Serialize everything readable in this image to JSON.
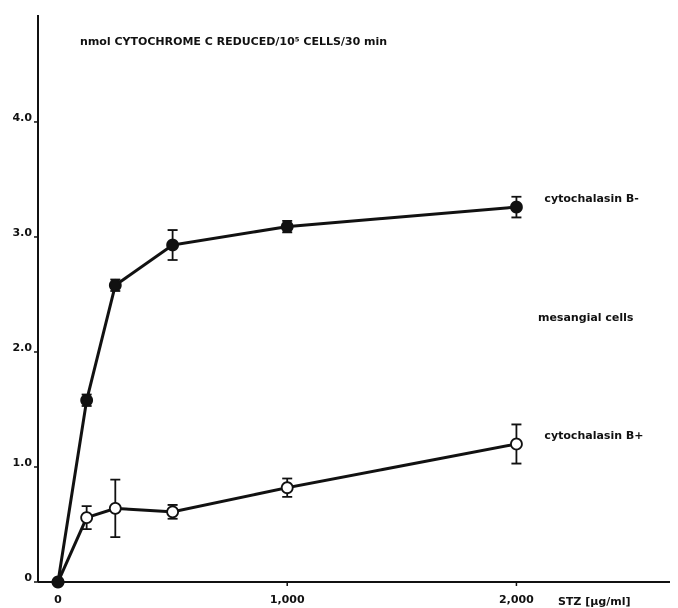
{
  "chart_data": {
    "type": "line",
    "title": "nmol CYTOCHROME C REDUCED/10⁵ CELLS/30 min",
    "x_label": "STZ [µg/ml]",
    "annotation": "mesangial cells",
    "x": [
      0,
      125,
      250,
      500,
      1000,
      2000
    ],
    "series": [
      {
        "name": "cytochalasin B+",
        "color": "#111111",
        "marker": "open",
        "values": [
          0,
          0.56,
          0.64,
          0.61,
          0.82,
          1.2
        ],
        "errors": [
          0,
          0.1,
          0.25,
          0.06,
          0.08,
          0.17
        ]
      },
      {
        "name": "cytochalasin B-",
        "color": "#111111",
        "marker": "filled",
        "values": [
          0,
          1.58,
          2.58,
          2.93,
          3.09,
          3.26
        ],
        "errors": [
          0,
          0.05,
          0.05,
          0.13,
          0.05,
          0.09
        ]
      }
    ],
    "xlim": [
      0,
      2670
    ],
    "ylim": [
      0,
      4.93
    ],
    "xticks": [
      0,
      {
        "value": 1000,
        "label": "1,000"
      },
      {
        "value": 2000,
        "label": "2,000"
      }
    ],
    "yticks": [
      0,
      {
        "value": 1,
        "label": "1.0"
      },
      {
        "value": 2,
        "label": "2.0"
      },
      {
        "value": 3,
        "label": "3.0"
      },
      {
        "value": 4,
        "label": "4.0"
      }
    ],
    "grid": false
  }
}
